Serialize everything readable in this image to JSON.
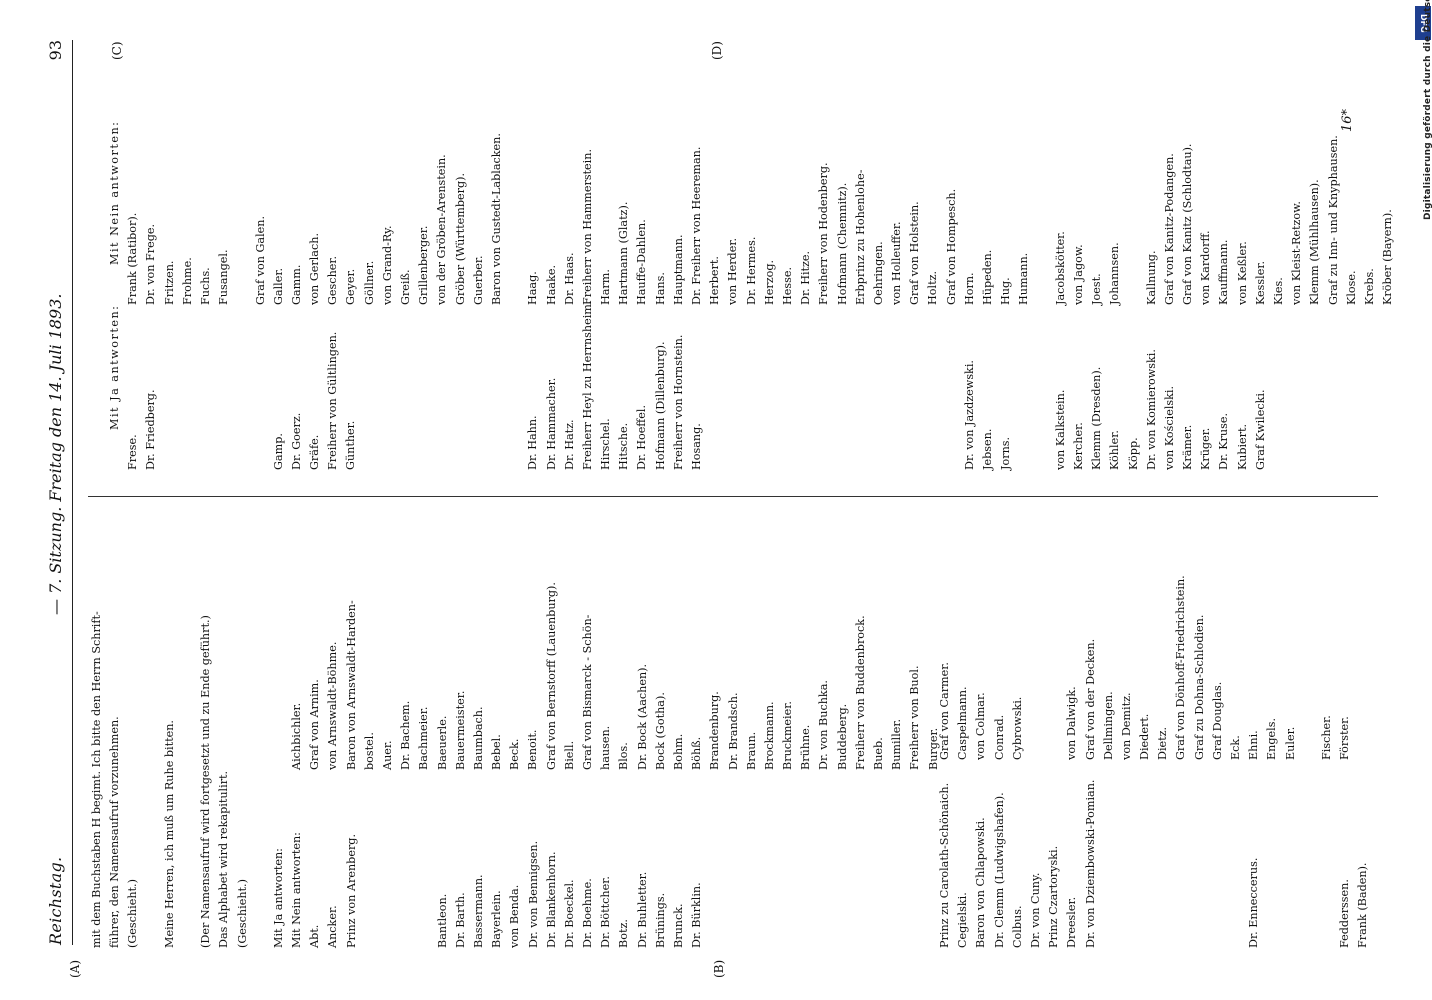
{
  "header": {
    "left": "Reichstag.",
    "center": "—  7. Sitzung.  Freitag den 14. Juli 1893.",
    "right": "93"
  },
  "markers": {
    "a": "(A)",
    "b": "(B)",
    "c": "(C)",
    "d": "(D)"
  },
  "signature": "16*",
  "dfg_note": "Digitalisierung gefördert durch die Deutsche Forschungsgemeinschaft -",
  "dfg_logo": "DFG",
  "col1": [
    "mit dem Buchstaben H begimt. Ich bitte den Herrn Schrift-",
    "führer, den Namensaufruf vorzunehmen.",
    "(Geschieht.)",
    "",
    "Meine Herren, ich muß um Ruhe bitten.",
    "",
    "(Der Namensaufruf wird fortgesetzt und zu Ende geführt.)",
    "Das Alphabet wird rekapitulirt.",
    "(Geschieht.)",
    "",
    "Mit Ja antworten:",
    "Mit Nein antworten:",
    "Abt.",
    "Ancker.",
    "Prinz von Arenberg.",
    "",
    "",
    "",
    "",
    "Bantleon.",
    "Dr. Barth.",
    "Bassermann.",
    "Bayerlein.",
    "von Benda.",
    "Dr. von Bennigsen.",
    "Dr. Blankenhorn.",
    "Dr. Boeckel.",
    "Dr. Boehme.",
    "Dr. Böttcher.",
    "Botz.",
    "Dr. Buhletter.",
    "Brünings.",
    "Brunck.",
    "Dr. Bürklin."
  ],
  "col2": [
    "Aichbichler.",
    "Graf von Arnim.",
    "von Arnswaldt-Böhme.",
    "Baron von Arnswaldt-Harden-",
    "bostel.",
    "Auer.",
    "Dr. Bachem.",
    "Bachmeier.",
    "Baeuerle.",
    "Bauermeister.",
    "Baumbach.",
    "Bebel.",
    "Beck.",
    "Benoit.",
    "Graf von Bernstorff (Lauenburg).",
    "Biell.",
    "Graf von Bismarck - Schön-",
    "hausen.",
    "Blos.",
    "Dr. Bock (Aachen).",
    "Bock (Gotha).",
    "Bohm.",
    "Böhß.",
    "Brandenburg.",
    "Dr. Brandsch.",
    "Braun.",
    "Brockmann.",
    "Bruckmeier.",
    "Brühne.",
    "Dr. von Buchka.",
    "Buddeberg.",
    "Freiherr von Buddenbrock.",
    "Bueb.",
    "Bumiller.",
    "Freiherr von Buol.",
    "Burger."
  ],
  "col3_left": [
    "Prinz zu Carolath-Schönaich.",
    "Cegielski.",
    "Baron von Chlapowski.",
    "Dr. Clemm (Ludwigshafen).",
    "Colbus.",
    "Dr. von Cuny.",
    "Prinz Czartoryski.",
    "Dreesler.",
    "Dr. von Dziembowski-Pomian.",
    "",
    "",
    "",
    "",
    "",
    "",
    "",
    "",
    "Dr. Enneccerus.",
    "",
    "",
    "",
    "",
    "Fedderssen.",
    "Frank (Baden)."
  ],
  "col3_right": [
    "Graf von Carmer.",
    "Caspelmann.",
    "von Colmar.",
    "Conrad.",
    "Cybrowski.",
    "",
    "",
    "von Dalwigk.",
    "Graf von der Decken.",
    "Dellmingen.",
    "von Demitz.",
    "Diedert.",
    "Dietz.",
    "Graf von Dönhoff-Friedrichstein.",
    "Graf zu Dohna-Schlodien.",
    "Graf Douglas.",
    "Eck.",
    "Ehni.",
    "Engels.",
    "Euler.",
    "",
    "Fischer.",
    "Förster."
  ],
  "col4_ja_heading": "Mit Ja antworten:",
  "col4_ja": [
    "Frese.",
    "Dr. Friedberg.",
    "",
    "",
    "",
    "",
    "",
    "",
    "Gamp.",
    "Dr. Goerz.",
    "Gräfe.",
    "Freiherr von Gültlingen.",
    "Günther.",
    "",
    "",
    "",
    "",
    "",
    "",
    "",
    "",
    "",
    "Dr. Hahn.",
    "Dr. Hammacher.",
    "Dr. Hatz.",
    "Freiherr Heyl zu Herrnsheim.",
    "Hirschel.",
    "Hitsche.",
    "Dr. Hoeffel.",
    "Hofmann (Dillenburg).",
    "Freiherr von Hornstein.",
    "Hosang.",
    "",
    "",
    "",
    "",
    "",
    "",
    "",
    "",
    "",
    "",
    "",
    "",
    "",
    "",
    "Dr. von Jazdzewski.",
    "Jebsen.",
    "Jorns.",
    "",
    "",
    "von Kalkstein.",
    "Kercher.",
    "Klemm (Dresden).",
    "Köhler.",
    "Köpp.",
    "Dr. von Komierowski.",
    "von Kościelski.",
    "Krämer.",
    "Krüger.",
    "Dr. Kruse.",
    "Kubiert.",
    "Graf Kwilecki."
  ],
  "col5_nein_heading": "Mit Nein antworten:",
  "col5_nein": [
    "Frank (Ratibor).",
    "Dr. von Frege.",
    "Fritzen.",
    "Frohme.",
    "Fuchs.",
    "Fusangel.",
    "",
    "Graf von Galen.",
    "Galler.",
    "Gamm.",
    "von Gerlach.",
    "Gescher.",
    "Geyer.",
    "Göllner.",
    "von Grand-Ry.",
    "Greiß.",
    "Grillenberger.",
    "von der Gröben-Arenstein.",
    "Gröber (Württemberg).",
    "Guerber.",
    "Baron von Gustedt-Lablacken.",
    "",
    "Haag.",
    "Haake.",
    "Dr. Haas.",
    "Freiherr von Hammerstein.",
    "Harm.",
    "Hartmann (Glatz).",
    "Hauffe-Dahlen.",
    "Hans.",
    "Hauptmann.",
    "Dr. Freiherr von Heereman.",
    "Herbert.",
    "von Herder.",
    "Dr. Hermes.",
    "Herzog.",
    "Hesse.",
    "Dr. Hitze.",
    "Freiherr von Hodenberg.",
    "Hofmann (Chemnitz).",
    "Erbprinz zu Hohenlohe-",
    "Oehringen.",
    "von Holleuffer.",
    "Graf von Holstein.",
    "Holtz.",
    "Graf von Hompesch.",
    "Horn.",
    "Hüpeden.",
    "Hug.",
    "Humann.",
    "",
    "Jacobskötter.",
    "von Jagow.",
    "Joest.",
    "Johannsen.",
    "",
    "Kallnung.",
    "Graf von Kanitz-Podangen.",
    "Graf von Kanitz (Schlodtau).",
    "von Kardorff.",
    "Kauffmann.",
    "von Keßler.",
    "Kessler.",
    "Kies.",
    "von Kleist-Retzow.",
    "Klemm (Mühlhausen).",
    "Graf zu Inn- und Knyphausen.",
    "Klose.",
    "Krebs.",
    "Kröber (Bayern)."
  ]
}
